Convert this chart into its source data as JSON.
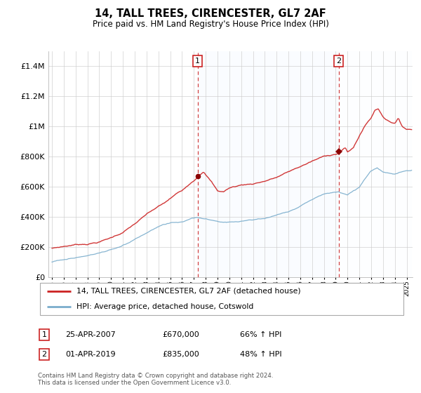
{
  "title": "14, TALL TREES, CIRENCESTER, GL7 2AF",
  "subtitle": "Price paid vs. HM Land Registry's House Price Index (HPI)",
  "legend_line1": "14, TALL TREES, CIRENCESTER, GL7 2AF (detached house)",
  "legend_line2": "HPI: Average price, detached house, Cotswold",
  "annotation1_date": "25-APR-2007",
  "annotation1_price": "£670,000",
  "annotation1_hpi": "66% ↑ HPI",
  "annotation2_date": "01-APR-2019",
  "annotation2_price": "£835,000",
  "annotation2_hpi": "48% ↑ HPI",
  "footer": "Contains HM Land Registry data © Crown copyright and database right 2024.\nThis data is licensed under the Open Government Licence v3.0.",
  "sale1_year": 2007.32,
  "sale1_price": 670000,
  "sale2_year": 2019.25,
  "sale2_price": 835000,
  "red_color": "#cc2222",
  "blue_color": "#7aadcc",
  "blue_fill": "#ddeeff",
  "vline_color": "#cc2222",
  "plot_background": "#ffffff",
  "grid_color": "#cccccc",
  "ylim_max": 1500000,
  "xlim_start": 1994.7,
  "xlim_end": 2025.5
}
